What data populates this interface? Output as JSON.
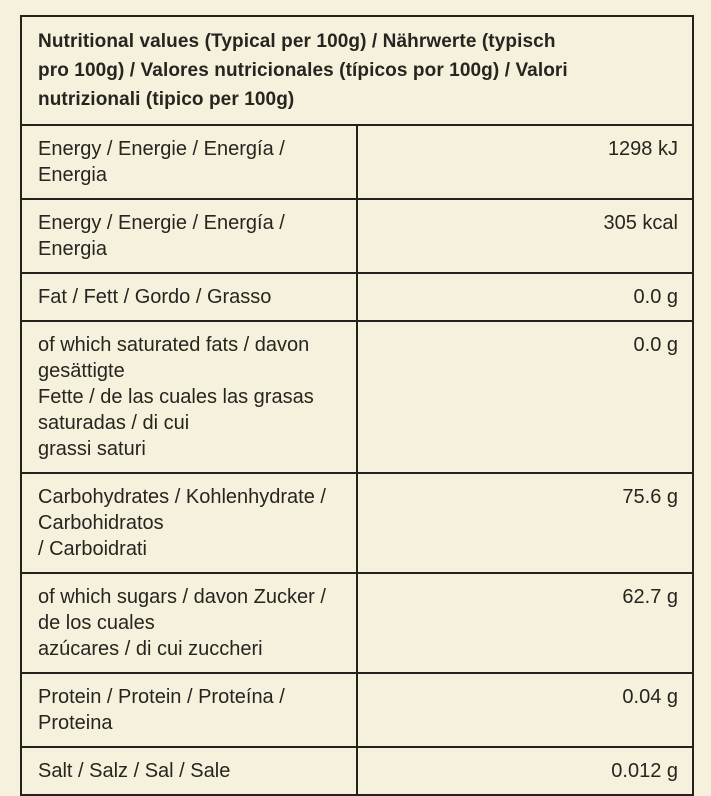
{
  "colors": {
    "background": "#f5f1dc",
    "border": "#23221c",
    "text": "#26251f"
  },
  "table": {
    "title": "Nutritional values (Typical per 100g) / Nährwerte (typisch\npro 100g) / Valores nutricionales (típicos por 100g) / Valori\nnutrizionali (tipico per 100g)",
    "rows": [
      {
        "label": "Energy / Energie / Energía / Energia",
        "value": "1298 kJ"
      },
      {
        "label": "Energy / Energie / Energía / Energia",
        "value": "305 kcal"
      },
      {
        "label": "Fat / Fett / Gordo / Grasso",
        "value": "0.0 g"
      },
      {
        "label": "of which saturated fats / davon gesättigte\nFette / de las cuales las grasas saturadas / di cui\ngrassi saturi",
        "value": "0.0 g"
      },
      {
        "label": "Carbohydrates / Kohlenhydrate / Carbohidratos\n/ Carboidrati",
        "value": "75.6 g"
      },
      {
        "label": "of which sugars / davon Zucker / de los cuales\nazúcares / di cui zuccheri",
        "value": "62.7 g"
      },
      {
        "label": "Protein / Protein / Proteína / Proteina",
        "value": "0.04 g"
      },
      {
        "label": "Salt / Salz / Sal / Sale",
        "value": "0.012 g"
      }
    ]
  }
}
